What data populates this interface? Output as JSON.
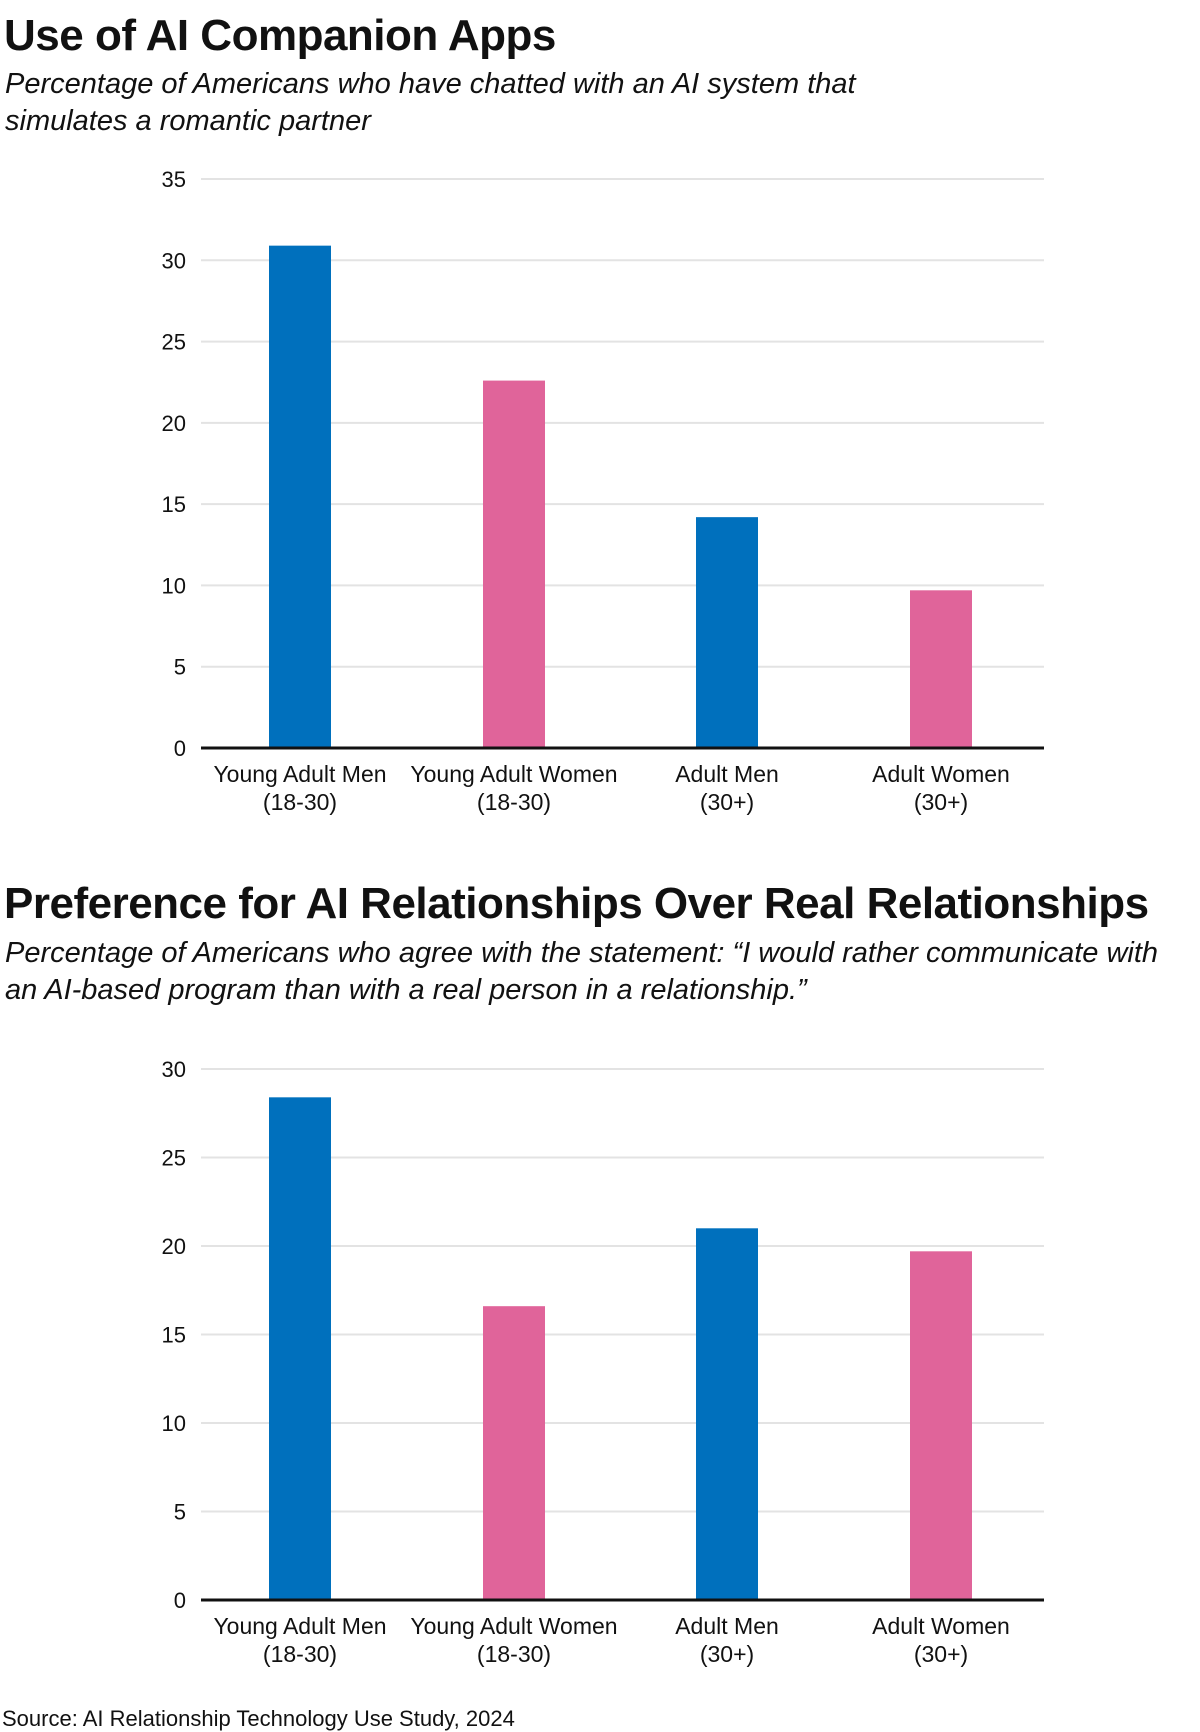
{
  "colors": {
    "men": "#0070bd",
    "women": "#e0649a",
    "grid": "#e3e3e3",
    "axis": "#111111"
  },
  "chart_data": [
    {
      "type": "bar",
      "title": "Use of AI Companion Apps",
      "subtitle": "Percentage of Americans who have chatted with an AI system that simulates a romantic partner",
      "categories": [
        [
          "Young Adult Men",
          "(18-30)"
        ],
        [
          "Young Adult Women",
          "(18-30)"
        ],
        [
          "Adult Men",
          "(30+)"
        ],
        [
          "Adult Women",
          "(30+)"
        ]
      ],
      "values": [
        30.9,
        22.6,
        14.2,
        9.7
      ],
      "bar_colors": [
        "#0070bd",
        "#e0649a",
        "#0070bd",
        "#e0649a"
      ],
      "ylim": [
        0,
        35
      ],
      "yticks": [
        0,
        5,
        10,
        15,
        20,
        25,
        30,
        35
      ],
      "grid": true,
      "xlabel": "",
      "ylabel": ""
    },
    {
      "type": "bar",
      "title": "Preference for AI Relationships Over Real Relationships",
      "subtitle": "Percentage of Americans who agree with the statement: “I would rather communicate with an AI-based program than with a real person in a relationship.”",
      "categories": [
        [
          "Young Adult Men",
          "(18-30)"
        ],
        [
          "Young Adult Women",
          "(18-30)"
        ],
        [
          "Adult Men",
          "(30+)"
        ],
        [
          "Adult Women",
          "(30+)"
        ]
      ],
      "values": [
        28.4,
        16.6,
        21.0,
        19.7
      ],
      "bar_colors": [
        "#0070bd",
        "#e0649a",
        "#0070bd",
        "#e0649a"
      ],
      "ylim": [
        0,
        30
      ],
      "yticks": [
        0,
        5,
        10,
        15,
        20,
        25,
        30
      ],
      "grid": true,
      "xlabel": "",
      "ylabel": ""
    }
  ],
  "source": "Source: AI Relationship Technology Use Study, 2024"
}
